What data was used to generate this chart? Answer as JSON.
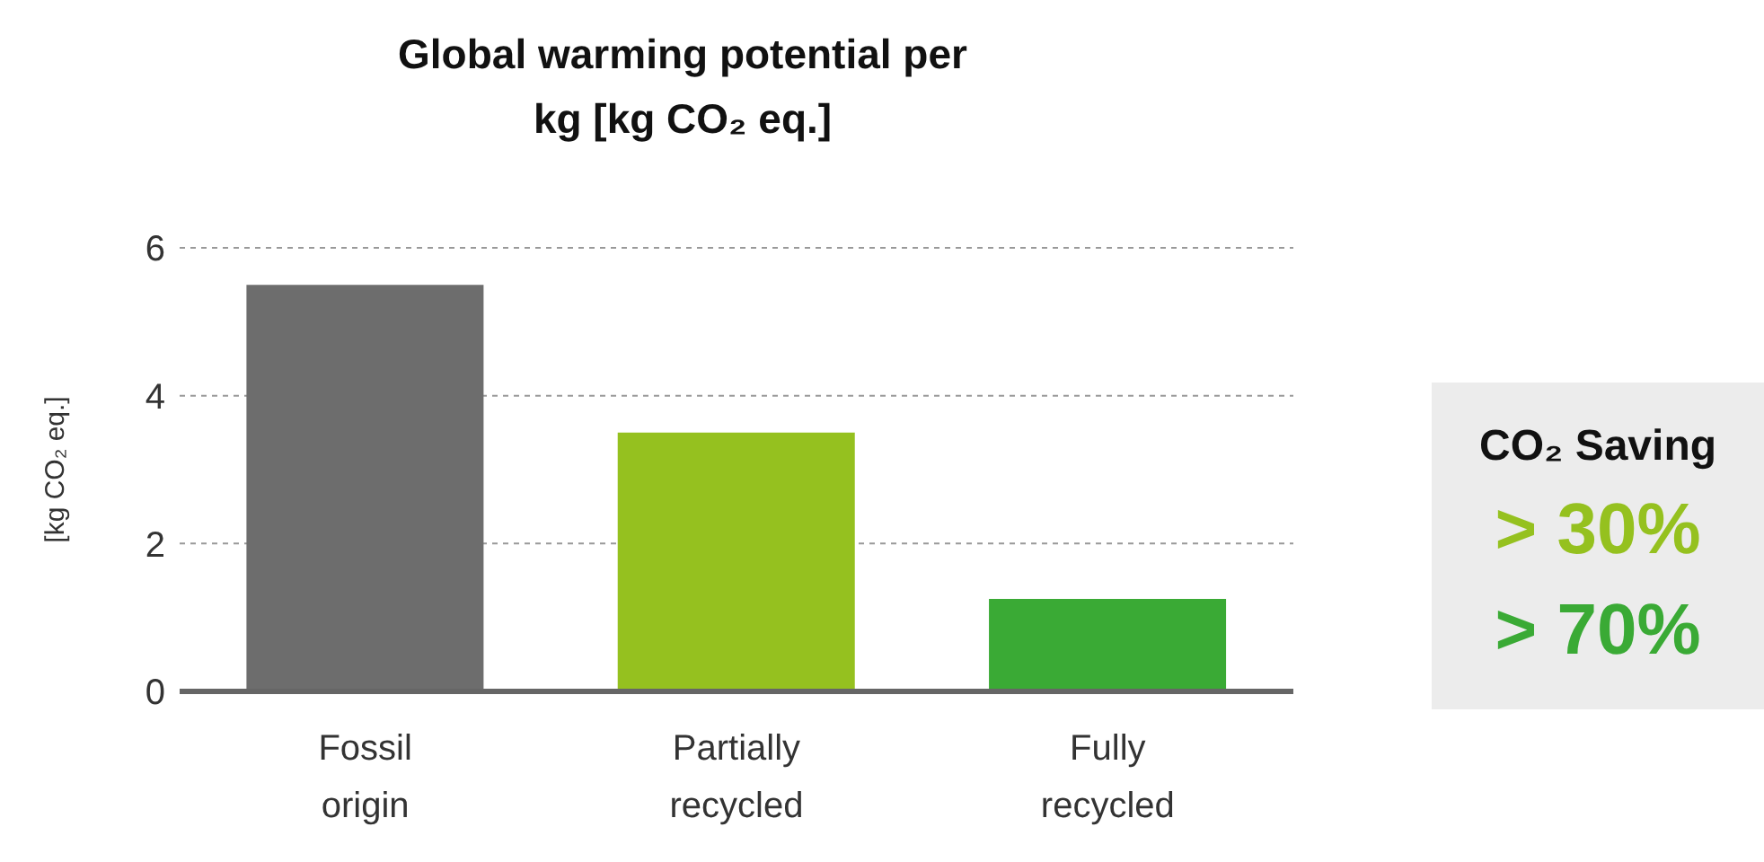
{
  "chart_data": {
    "type": "bar",
    "title": "Global warming potential per kg [kg CO₂ eq.]",
    "ylabel": "[kg CO₂ eq.]",
    "categories": [
      "Fossil origin",
      "Partially recycled",
      "Fully recycled"
    ],
    "values": [
      5.5,
      3.5,
      1.25
    ],
    "colors": [
      "#6d6d6d",
      "#95c11f",
      "#3aaa35"
    ],
    "ylim": [
      0,
      6
    ],
    "yticks": [
      0,
      2,
      4,
      6
    ],
    "grid": "y",
    "annotations": [
      "CO₂ Saving",
      "> 30%",
      "> 70%"
    ]
  }
}
